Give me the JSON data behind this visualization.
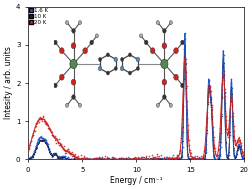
{
  "title": "",
  "xlabel": "Energy / cm⁻¹",
  "ylabel": "Intesity / arb. units",
  "xlim": [
    0,
    20
  ],
  "ylim": [
    0,
    4
  ],
  "yticks": [
    0,
    1,
    2,
    3,
    4
  ],
  "xticks": [
    0,
    5,
    10,
    15,
    20
  ],
  "legend_labels": [
    "1.6 K",
    "10 K",
    "20 K"
  ],
  "legend_colors": [
    "#2255cc",
    "#222222",
    "#cc2222"
  ],
  "bg_color": "#ffffff",
  "peak1": 14.5,
  "peak2": 16.7,
  "peak3": 18.05,
  "peak4": 18.8
}
